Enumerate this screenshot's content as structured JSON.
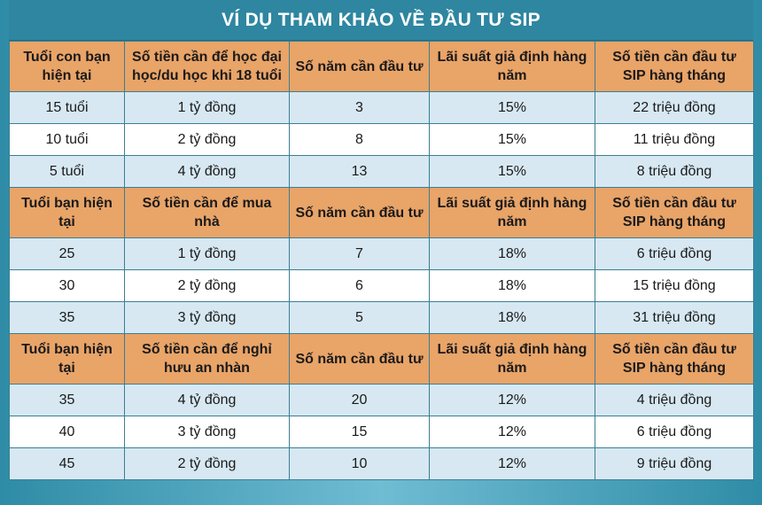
{
  "title": "VÍ DỤ THAM KHẢO VỀ ĐẦU TƯ SIP",
  "sections": [
    {
      "headers": [
        "Tuổi con bạn hiện tại",
        "Số tiền cần để học đại học/du học khi 18 tuổi",
        "Số năm cần đầu tư",
        "Lãi suất giả định hàng năm",
        "Số tiền cần đầu tư SIP hàng tháng"
      ],
      "rows": [
        [
          "15 tuổi",
          "1 tỷ đồng",
          "3",
          "15%",
          "22 triệu đồng"
        ],
        [
          "10 tuổi",
          "2 tỷ đồng",
          "8",
          "15%",
          "11 triệu đồng"
        ],
        [
          "5 tuổi",
          "4 tỷ đồng",
          "13",
          "15%",
          "8 triệu đồng"
        ]
      ]
    },
    {
      "headers": [
        "Tuổi bạn hiện tại",
        "Số tiền cần để mua nhà",
        "Số năm cần đầu tư",
        "Lãi suất giả định hàng năm",
        "Số tiền cần đầu tư SIP hàng tháng"
      ],
      "rows": [
        [
          "25",
          "1 tỷ đồng",
          "7",
          "18%",
          "6 triệu đồng"
        ],
        [
          "30",
          "2 tỷ đồng",
          "6",
          "18%",
          "15 triệu đồng"
        ],
        [
          "35",
          "3 tỷ đồng",
          "5",
          "18%",
          "31 triệu đồng"
        ]
      ]
    },
    {
      "headers": [
        "Tuổi bạn hiện tại",
        "Số tiền cần để nghỉ hưu an nhàn",
        "Số năm cần đầu tư",
        "Lãi suất giả định hàng năm",
        "Số tiền cần đầu tư SIP hàng tháng"
      ],
      "rows": [
        [
          "35",
          "4 tỷ đồng",
          "20",
          "12%",
          "4 triệu đồng"
        ],
        [
          "40",
          "3 tỷ đồng",
          "15",
          "12%",
          "6 triệu đồng"
        ],
        [
          "45",
          "2 tỷ đồng",
          "10",
          "12%",
          "9 triệu đồng"
        ]
      ]
    }
  ],
  "colors": {
    "title_bg": "#2e86a0",
    "header_bg": "#e9a468",
    "row_light": "#d7e8f2",
    "row_white": "#ffffff"
  }
}
